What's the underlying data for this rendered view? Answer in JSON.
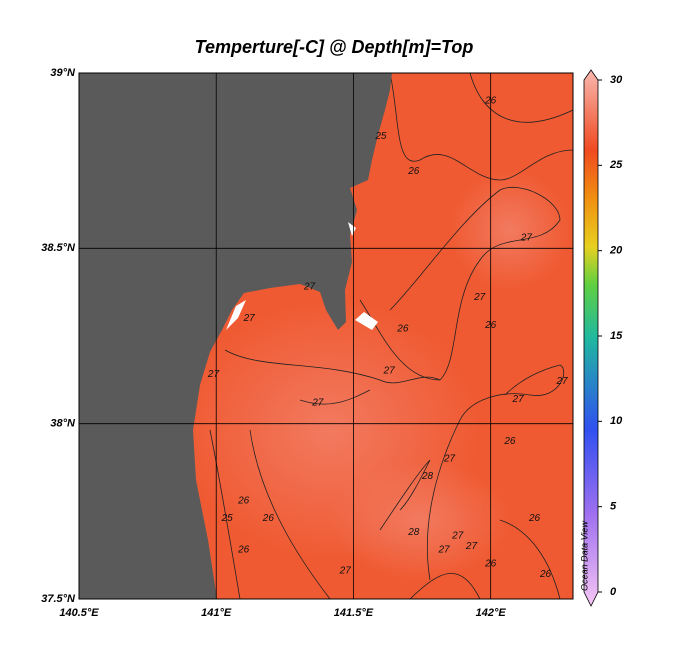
{
  "chart_data": {
    "type": "map",
    "title": "Temperture[-C] @ Depth[m]=Top",
    "watermark": "Ocean Data View",
    "xlim": [
      140.5,
      142.3
    ],
    "ylim": [
      37.5,
      39
    ],
    "xticks": [
      {
        "value": 140.5,
        "label": "140.5°E"
      },
      {
        "value": 141,
        "label": "141°E"
      },
      {
        "value": 141.5,
        "label": "141.5°E"
      },
      {
        "value": 142,
        "label": "142°E"
      }
    ],
    "yticks": [
      {
        "value": 37.5,
        "label": "37.5°N"
      },
      {
        "value": 38,
        "label": "38°N"
      },
      {
        "value": 38.5,
        "label": "38.5°N"
      },
      {
        "value": 39,
        "label": "39°N"
      }
    ],
    "grid": true,
    "colorbar": {
      "lim": [
        0,
        30
      ],
      "ticks": [
        0,
        5,
        10,
        15,
        20,
        25,
        30
      ]
    },
    "contour_labels": [
      {
        "lon": 142.0,
        "lat": 38.92,
        "value": 26
      },
      {
        "lon": 141.6,
        "lat": 38.82,
        "value": 25
      },
      {
        "lon": 141.72,
        "lat": 38.72,
        "value": 26
      },
      {
        "lon": 142.13,
        "lat": 38.53,
        "value": 27
      },
      {
        "lon": 141.96,
        "lat": 38.36,
        "value": 27
      },
      {
        "lon": 142.0,
        "lat": 38.28,
        "value": 26
      },
      {
        "lon": 141.68,
        "lat": 38.27,
        "value": 26
      },
      {
        "lon": 141.34,
        "lat": 38.39,
        "value": 27
      },
      {
        "lon": 141.12,
        "lat": 38.3,
        "value": 27
      },
      {
        "lon": 140.99,
        "lat": 38.14,
        "value": 27
      },
      {
        "lon": 141.63,
        "lat": 38.15,
        "value": 27
      },
      {
        "lon": 141.37,
        "lat": 38.06,
        "value": 27
      },
      {
        "lon": 142.1,
        "lat": 38.07,
        "value": 27
      },
      {
        "lon": 142.26,
        "lat": 38.12,
        "value": 27
      },
      {
        "lon": 141.85,
        "lat": 37.9,
        "value": 27
      },
      {
        "lon": 142.07,
        "lat": 37.95,
        "value": 26
      },
      {
        "lon": 141.77,
        "lat": 37.85,
        "value": 28
      },
      {
        "lon": 141.1,
        "lat": 37.78,
        "value": 26
      },
      {
        "lon": 141.04,
        "lat": 37.73,
        "value": 25
      },
      {
        "lon": 141.19,
        "lat": 37.73,
        "value": 26
      },
      {
        "lon": 141.72,
        "lat": 37.69,
        "value": 28
      },
      {
        "lon": 141.88,
        "lat": 37.68,
        "value": 27
      },
      {
        "lon": 141.83,
        "lat": 37.64,
        "value": 27
      },
      {
        "lon": 141.93,
        "lat": 37.65,
        "value": 27
      },
      {
        "lon": 141.1,
        "lat": 37.64,
        "value": 26
      },
      {
        "lon": 141.47,
        "lat": 37.58,
        "value": 27
      },
      {
        "lon": 142.0,
        "lat": 37.6,
        "value": 26
      },
      {
        "lon": 142.16,
        "lat": 37.73,
        "value": 26
      },
      {
        "lon": 142.2,
        "lat": 37.57,
        "value": 26
      }
    ]
  }
}
